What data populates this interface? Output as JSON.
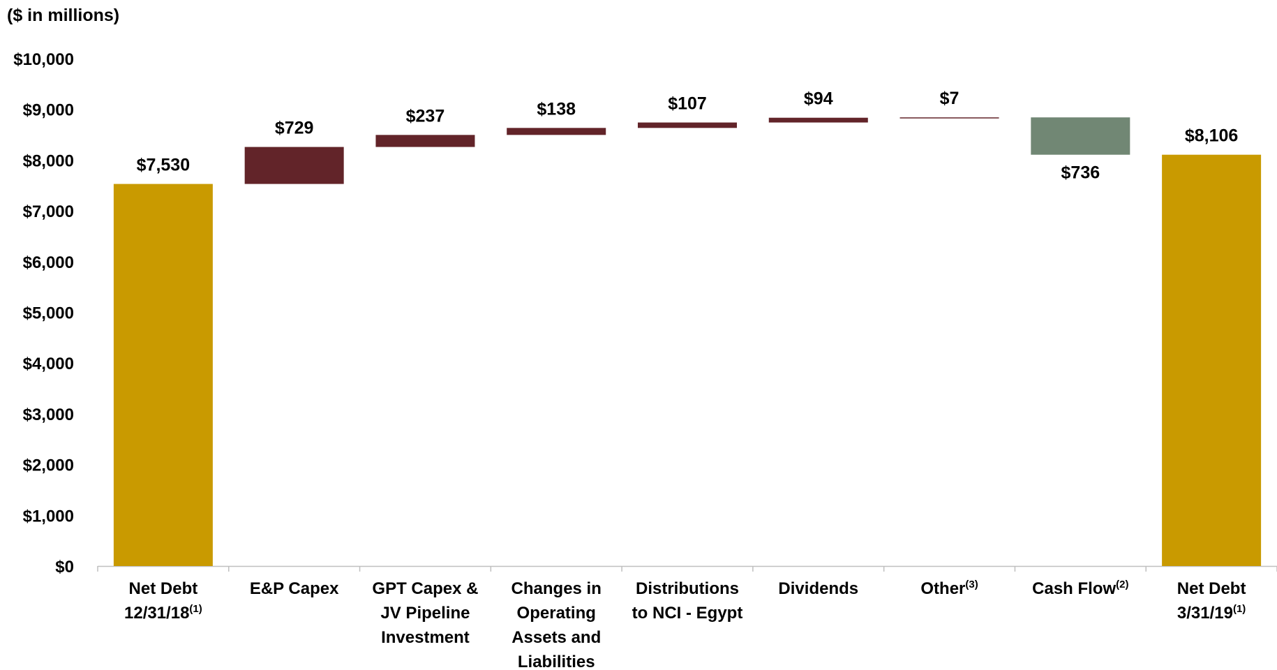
{
  "chart_data": {
    "type": "bar",
    "variant": "waterfall",
    "unit_note": "($ in millions)",
    "ylim": [
      0,
      10000
    ],
    "y_ticks": [
      {
        "value": 0,
        "label": "$0"
      },
      {
        "value": 1000,
        "label": "$1,000"
      },
      {
        "value": 2000,
        "label": "$2,000"
      },
      {
        "value": 3000,
        "label": "$3,000"
      },
      {
        "value": 4000,
        "label": "$4,000"
      },
      {
        "value": 5000,
        "label": "$5,000"
      },
      {
        "value": 6000,
        "label": "$6,000"
      },
      {
        "value": 7000,
        "label": "$7,000"
      },
      {
        "value": 8000,
        "label": "$8,000"
      },
      {
        "value": 9000,
        "label": "$9,000"
      },
      {
        "value": 10000,
        "label": "$10,000"
      }
    ],
    "grid": false,
    "legend": "none",
    "colors": {
      "total": "#C99A00",
      "increase": "#622429",
      "decrease": "#718774",
      "axis": "#BFBFBF"
    },
    "bars": [
      {
        "category": [
          "Net Debt",
          "12/31/18"
        ],
        "sup": "(1)",
        "kind": "total",
        "start": 0,
        "end": 7530,
        "label": "$7,530"
      },
      {
        "category": [
          "E&P Capex"
        ],
        "sup": "",
        "kind": "increase",
        "start": 7530,
        "end": 8259,
        "label": "$729"
      },
      {
        "category": [
          "GPT Capex &",
          "JV Pipeline",
          "Investment"
        ],
        "sup": "",
        "kind": "increase",
        "start": 8259,
        "end": 8496,
        "label": "$237"
      },
      {
        "category": [
          "Changes in",
          "Operating",
          "Assets and",
          "Liabilities"
        ],
        "sup": "",
        "kind": "increase",
        "start": 8496,
        "end": 8634,
        "label": "$138"
      },
      {
        "category": [
          "Distributions",
          "to NCI - Egypt"
        ],
        "sup": "",
        "kind": "increase",
        "start": 8634,
        "end": 8741,
        "label": "$107"
      },
      {
        "category": [
          "Dividends"
        ],
        "sup": "",
        "kind": "increase",
        "start": 8741,
        "end": 8835,
        "label": "$94"
      },
      {
        "category": [
          "Other"
        ],
        "sup": "(3)",
        "kind": "increase",
        "start": 8835,
        "end": 8842,
        "label": "$7"
      },
      {
        "category": [
          "Cash Flow"
        ],
        "sup": "(2)",
        "kind": "decrease",
        "start": 8842,
        "end": 8106,
        "label": "$736"
      },
      {
        "category": [
          "Net Debt",
          "3/31/19"
        ],
        "sup": "(1)",
        "kind": "total",
        "start": 0,
        "end": 8106,
        "label": "$8,106"
      }
    ]
  }
}
